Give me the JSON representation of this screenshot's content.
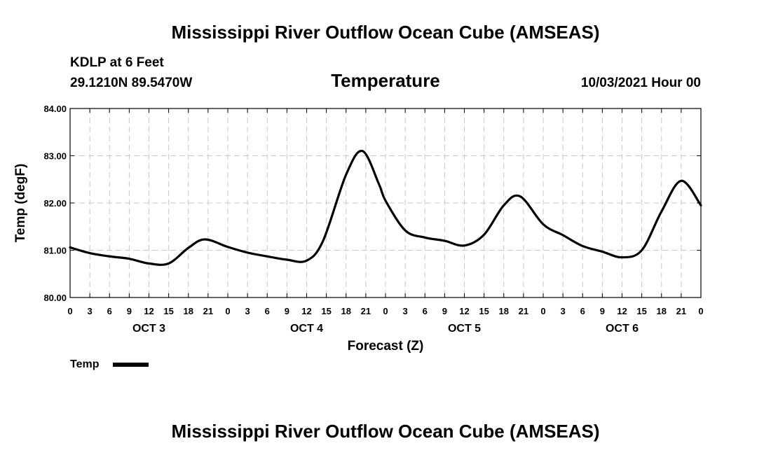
{
  "header": {
    "title": "Mississippi River Outflow Ocean Cube (AMSEAS)",
    "station": "KDLP at 6 Feet",
    "location": "29.1210N  89.5470W",
    "parameter": "Temperature",
    "timestamp": "10/03/2021 Hour 00"
  },
  "footer": {
    "title": "Mississippi River Outflow Ocean Cube (AMSEAS)"
  },
  "chart_data": {
    "type": "line",
    "title": "Temperature",
    "xlabel": "Forecast (Z)",
    "ylabel": "Temp (degF)",
    "ylim": [
      80.0,
      84.0
    ],
    "xlim": [
      0,
      96
    ],
    "x_unit": "hours since 10/03/2021 00Z",
    "y_ticks": [
      "80.00",
      "81.00",
      "82.00",
      "83.00",
      "84.00"
    ],
    "x_ticks": [
      "0",
      "3",
      "6",
      "9",
      "12",
      "15",
      "18",
      "21",
      "0",
      "3",
      "6",
      "9",
      "12",
      "15",
      "18",
      "21",
      "0",
      "3",
      "6",
      "9",
      "12",
      "15",
      "18",
      "21",
      "0",
      "3",
      "6",
      "9",
      "12",
      "15",
      "18",
      "21",
      "0"
    ],
    "day_labels": [
      {
        "label": "OCT 3",
        "hour": 12
      },
      {
        "label": "OCT 4",
        "hour": 36
      },
      {
        "label": "OCT 5",
        "hour": 60
      },
      {
        "label": "OCT 6",
        "hour": 84
      }
    ],
    "grid": true,
    "legend_position": "bottom-left",
    "series": [
      {
        "name": "Temp",
        "color": "#000000",
        "x": [
          0,
          3,
          6,
          9,
          12,
          15,
          18,
          20.5,
          24,
          27,
          30,
          33,
          36,
          38.5,
          42,
          44.5,
          47,
          48,
          51,
          54,
          57,
          60,
          63,
          66,
          68.5,
          72,
          75,
          78,
          81,
          84,
          87,
          90,
          93,
          96
        ],
        "values": [
          81.06,
          80.94,
          80.87,
          80.82,
          80.72,
          80.72,
          81.05,
          81.23,
          81.07,
          80.95,
          80.87,
          80.8,
          80.78,
          81.2,
          82.6,
          83.1,
          82.4,
          82.05,
          81.42,
          81.27,
          81.2,
          81.1,
          81.33,
          81.95,
          82.14,
          81.55,
          81.32,
          81.09,
          80.97,
          80.85,
          81.0,
          81.82,
          82.47,
          81.95
        ]
      }
    ]
  }
}
